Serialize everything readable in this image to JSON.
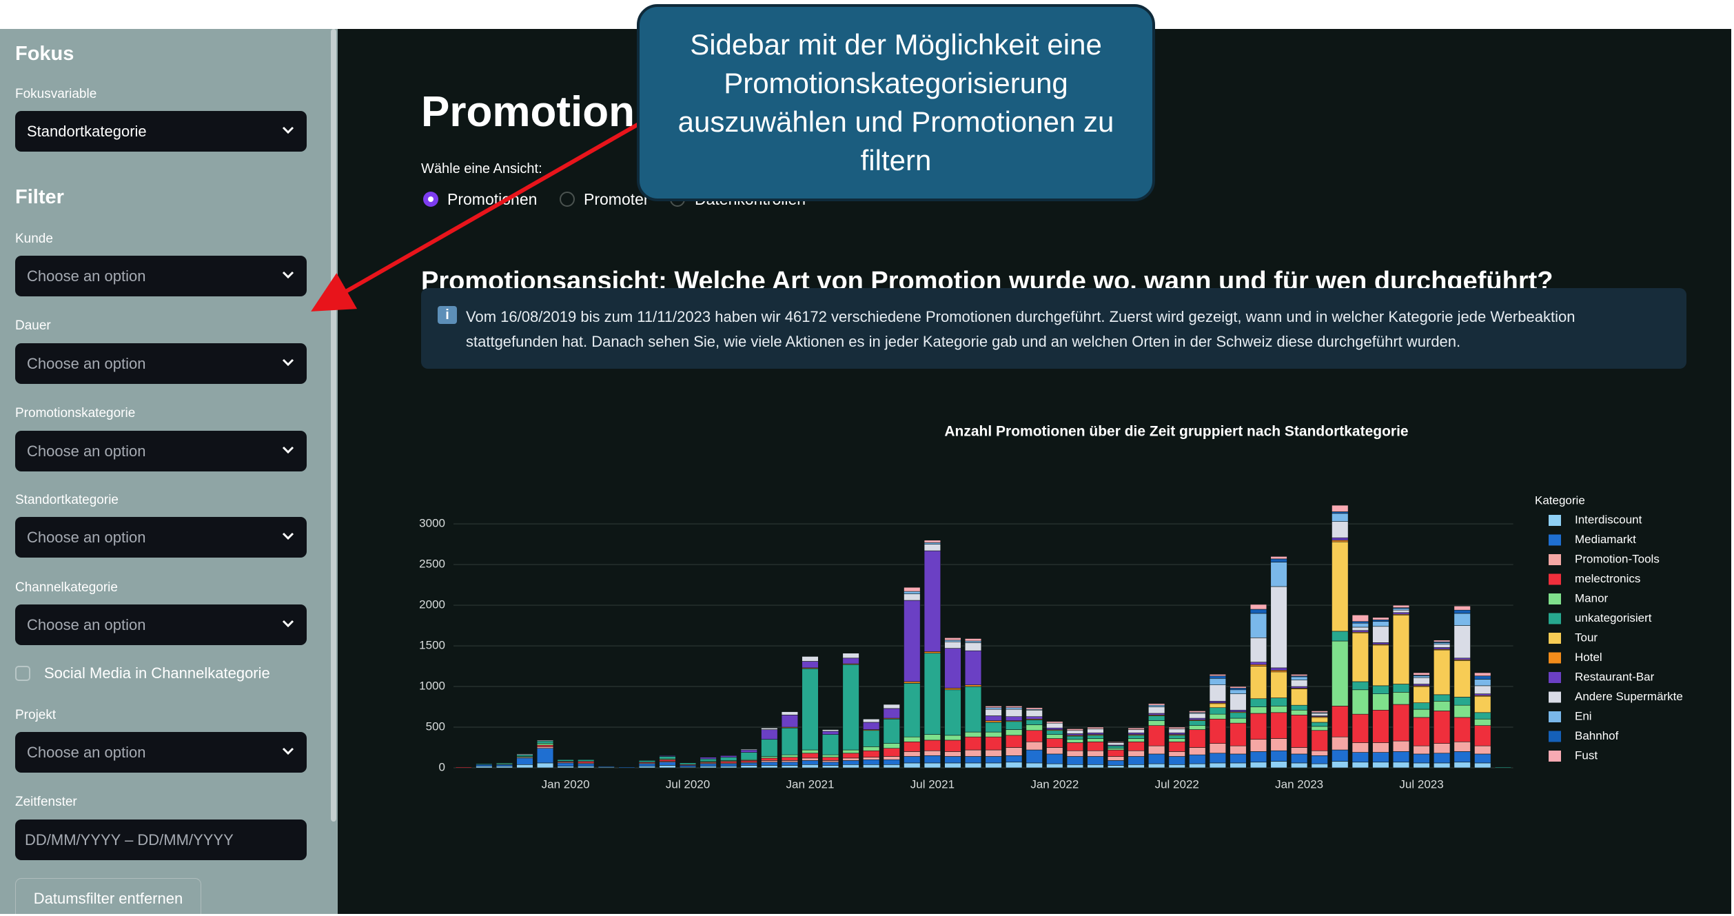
{
  "sidebar": {
    "focus_heading": "Fokus",
    "focus_label": "Fokusvariable",
    "focus_value": "Standortkategorie",
    "filter_heading": "Filter",
    "filters": [
      {
        "label": "Kunde",
        "placeholder": "Choose an option"
      },
      {
        "label": "Dauer",
        "placeholder": "Choose an option"
      },
      {
        "label": "Promotionskategorie",
        "placeholder": "Choose an option"
      },
      {
        "label": "Standortkategorie",
        "placeholder": "Choose an option"
      },
      {
        "label": "Channelkategorie",
        "placeholder": "Choose an option"
      },
      {
        "label": "Projekt",
        "placeholder": "Choose an option"
      }
    ],
    "checkbox_label": "Social Media in Channelkategorie",
    "date_label": "Zeitfenster",
    "date_placeholder": "DD/MM/YYYY – DD/MM/YYYY",
    "button": "Datumsfilter entfernen"
  },
  "main": {
    "title": "Promotion",
    "view_label": "Wähle eine Ansicht:",
    "views": [
      "Promotionen",
      "Promoter",
      "Datenkontrollen"
    ],
    "heading": "Promotionsansicht: Welche Art von Promotion wurde wo, wann und für wen durchgeführt?",
    "info": "Vom 16/08/2019 bis zum 11/11/2023 haben wir 46172 verschiedene Promotionen durchgeführt. Zuerst wird gezeigt, wann und in welcher Kategorie jede Werbeaktion stattgefunden hat. Danach sehen Sie, wie viele Aktionen es in jeder Kategorie gab und an welchen Orten in der Schweiz diese durchgeführt wurden."
  },
  "callout": {
    "text": "Sidebar mit der Möglichkeit eine Promotionskategorisierung auszuwählen und Promotionen zu filtern"
  },
  "chart_data": {
    "type": "stacked_bar",
    "title": "Anzahl Promotionen über die Zeit gruppiert nach Standortkategorie",
    "legend_title": "Kategorie",
    "legend": "right",
    "grid": true,
    "x": [
      "2019-08",
      "2019-09",
      "2019-10",
      "2019-11",
      "2019-12",
      "2020-01",
      "2020-02",
      "2020-03",
      "2020-04",
      "2020-05",
      "2020-06",
      "2020-07",
      "2020-08",
      "2020-09",
      "2020-10",
      "2020-11",
      "2020-12",
      "2021-01",
      "2021-02",
      "2021-03",
      "2021-04",
      "2021-05",
      "2021-06",
      "2021-07",
      "2021-08",
      "2021-09",
      "2021-10",
      "2021-11",
      "2021-12",
      "2022-01",
      "2022-02",
      "2022-03",
      "2022-04",
      "2022-05",
      "2022-06",
      "2022-07",
      "2022-08",
      "2022-09",
      "2022-10",
      "2022-11",
      "2022-12",
      "2023-01",
      "2023-02",
      "2023-03",
      "2023-04",
      "2023-05",
      "2023-06",
      "2023-07",
      "2023-08",
      "2023-09",
      "2023-10",
      "2023-11"
    ],
    "xticks": [
      {
        "value": "2020-01",
        "label": "Jan 2020"
      },
      {
        "value": "2020-07",
        "label": "Jul 2020"
      },
      {
        "value": "2021-01",
        "label": "Jan 2021"
      },
      {
        "value": "2021-07",
        "label": "Jul 2021"
      },
      {
        "value": "2022-01",
        "label": "Jan 2022"
      },
      {
        "value": "2022-07",
        "label": "Jul 2022"
      },
      {
        "value": "2023-01",
        "label": "Jan 2023"
      },
      {
        "value": "2023-07",
        "label": "Jul 2023"
      }
    ],
    "ylim": [
      0,
      3400
    ],
    "yticks": [
      0,
      500,
      1000,
      1500,
      2000,
      2500,
      3000
    ],
    "series": [
      {
        "name": "Interdiscount",
        "color": "#8fd0f5",
        "values": [
          0,
          20,
          20,
          40,
          60,
          20,
          20,
          10,
          0,
          20,
          30,
          10,
          20,
          20,
          30,
          30,
          30,
          40,
          30,
          40,
          40,
          40,
          60,
          60,
          60,
          60,
          60,
          70,
          60,
          50,
          40,
          40,
          30,
          40,
          50,
          40,
          50,
          60,
          60,
          70,
          80,
          60,
          50,
          80,
          70,
          70,
          70,
          60,
          60,
          70,
          60,
          0
        ]
      },
      {
        "name": "Mediamarkt",
        "color": "#1f6fd1",
        "values": [
          0,
          20,
          20,
          80,
          180,
          40,
          30,
          10,
          10,
          30,
          40,
          20,
          30,
          30,
          30,
          40,
          40,
          50,
          40,
          50,
          60,
          60,
          80,
          90,
          80,
          80,
          80,
          80,
          160,
          120,
          100,
          100,
          60,
          100,
          120,
          100,
          110,
          120,
          110,
          130,
          130,
          110,
          100,
          140,
          120,
          120,
          130,
          110,
          120,
          130,
          110,
          0
        ]
      },
      {
        "name": "Promotion-Tools",
        "color": "#f5a7a4",
        "values": [
          0,
          0,
          0,
          10,
          20,
          10,
          10,
          0,
          0,
          10,
          10,
          0,
          10,
          10,
          10,
          20,
          20,
          30,
          20,
          30,
          30,
          40,
          60,
          60,
          60,
          80,
          80,
          100,
          100,
          80,
          70,
          70,
          50,
          70,
          100,
          60,
          90,
          120,
          100,
          150,
          150,
          80,
          60,
          160,
          120,
          120,
          130,
          100,
          120,
          120,
          100,
          0
        ]
      },
      {
        "name": "melectronics",
        "color": "#ef2f3c",
        "values": [
          10,
          0,
          0,
          0,
          20,
          10,
          20,
          0,
          0,
          10,
          20,
          10,
          10,
          20,
          20,
          30,
          40,
          60,
          40,
          60,
          80,
          100,
          120,
          130,
          140,
          160,
          160,
          150,
          140,
          110,
          100,
          110,
          80,
          110,
          250,
          120,
          220,
          300,
          280,
          320,
          320,
          400,
          250,
          380,
          350,
          400,
          450,
          350,
          400,
          300,
          250,
          0
        ]
      },
      {
        "name": "Manor",
        "color": "#7fe08c",
        "values": [
          0,
          0,
          10,
          10,
          20,
          0,
          0,
          0,
          0,
          0,
          10,
          0,
          10,
          10,
          10,
          20,
          30,
          40,
          30,
          40,
          50,
          60,
          60,
          70,
          60,
          60,
          60,
          70,
          70,
          50,
          40,
          40,
          20,
          40,
          60,
          40,
          50,
          60,
          60,
          80,
          80,
          60,
          50,
          800,
          300,
          200,
          150,
          100,
          120,
          150,
          80,
          0
        ]
      },
      {
        "name": "unkategorisiert",
        "color": "#27a88f",
        "values": [
          0,
          10,
          10,
          20,
          30,
          20,
          20,
          0,
          0,
          20,
          30,
          20,
          30,
          40,
          90,
          210,
          330,
          1000,
          250,
          1050,
          200,
          300,
          660,
          1000,
          560,
          560,
          120,
          100,
          60,
          50,
          40,
          40,
          30,
          40,
          60,
          40,
          60,
          80,
          70,
          100,
          100,
          60,
          50,
          120,
          100,
          100,
          100,
          80,
          80,
          100,
          80,
          10
        ]
      },
      {
        "name": "Tour",
        "color": "#f7cc55",
        "values": [
          0,
          0,
          0,
          0,
          0,
          0,
          0,
          0,
          0,
          0,
          0,
          0,
          0,
          0,
          0,
          0,
          0,
          0,
          0,
          0,
          0,
          0,
          0,
          0,
          0,
          0,
          0,
          0,
          0,
          0,
          0,
          0,
          0,
          0,
          0,
          0,
          0,
          50,
          0,
          400,
          320,
          200,
          60,
          1100,
          600,
          500,
          850,
          200,
          550,
          450,
          200,
          0
        ]
      },
      {
        "name": "Hotel",
        "color": "#f28c1b",
        "values": [
          0,
          0,
          0,
          0,
          0,
          0,
          0,
          0,
          0,
          0,
          0,
          0,
          0,
          0,
          0,
          0,
          10,
          10,
          0,
          10,
          10,
          10,
          20,
          20,
          20,
          20,
          20,
          10,
          10,
          10,
          10,
          10,
          0,
          10,
          10,
          10,
          10,
          10,
          10,
          20,
          20,
          10,
          10,
          20,
          10,
          10,
          10,
          10,
          10,
          10,
          10,
          0
        ]
      },
      {
        "name": "Restaurant-Bar",
        "color": "#6b40c4",
        "values": [
          0,
          0,
          0,
          0,
          0,
          0,
          0,
          0,
          0,
          0,
          10,
          0,
          20,
          20,
          30,
          120,
          150,
          80,
          40,
          70,
          90,
          120,
          1000,
          1240,
          490,
          420,
          60,
          50,
          30,
          20,
          20,
          20,
          10,
          20,
          20,
          20,
          20,
          20,
          20,
          30,
          30,
          20,
          10,
          30,
          20,
          20,
          20,
          20,
          20,
          20,
          20,
          0
        ]
      },
      {
        "name": "Andere Supermärkte",
        "color": "#d9dce6",
        "values": [
          0,
          0,
          0,
          10,
          10,
          0,
          0,
          0,
          0,
          0,
          0,
          0,
          0,
          0,
          10,
          20,
          40,
          60,
          20,
          60,
          40,
          50,
          80,
          80,
          80,
          100,
          80,
          90,
          80,
          60,
          40,
          50,
          30,
          40,
          80,
          50,
          60,
          200,
          200,
          300,
          1000,
          80,
          30,
          200,
          40,
          200,
          30,
          80,
          40,
          400,
          100,
          0
        ]
      },
      {
        "name": "Eni",
        "color": "#7ab8ea",
        "values": [
          0,
          0,
          0,
          0,
          0,
          0,
          0,
          0,
          0,
          0,
          0,
          0,
          0,
          0,
          0,
          0,
          0,
          0,
          0,
          0,
          0,
          0,
          30,
          20,
          20,
          20,
          20,
          20,
          10,
          0,
          0,
          0,
          0,
          0,
          20,
          0,
          10,
          80,
          50,
          300,
          300,
          40,
          10,
          100,
          50,
          60,
          20,
          20,
          20,
          150,
          80,
          0
        ]
      },
      {
        "name": "Bahnhof",
        "color": "#1560b8",
        "values": [
          0,
          0,
          0,
          0,
          0,
          0,
          0,
          0,
          0,
          0,
          0,
          0,
          0,
          0,
          0,
          0,
          0,
          0,
          0,
          0,
          0,
          0,
          0,
          0,
          0,
          0,
          0,
          0,
          0,
          0,
          0,
          0,
          0,
          0,
          0,
          0,
          0,
          30,
          20,
          50,
          40,
          10,
          0,
          20,
          20,
          20,
          10,
          10,
          10,
          40,
          40,
          0
        ]
      },
      {
        "name": "Fust",
        "color": "#f8aab3",
        "values": [
          0,
          0,
          0,
          0,
          0,
          0,
          0,
          0,
          0,
          0,
          0,
          0,
          0,
          0,
          0,
          0,
          0,
          0,
          0,
          0,
          0,
          0,
          50,
          30,
          30,
          30,
          20,
          20,
          20,
          20,
          20,
          20,
          10,
          20,
          20,
          20,
          20,
          20,
          20,
          60,
          30,
          20,
          20,
          80,
          80,
          30,
          30,
          30,
          20,
          50,
          40,
          0
        ]
      }
    ]
  }
}
